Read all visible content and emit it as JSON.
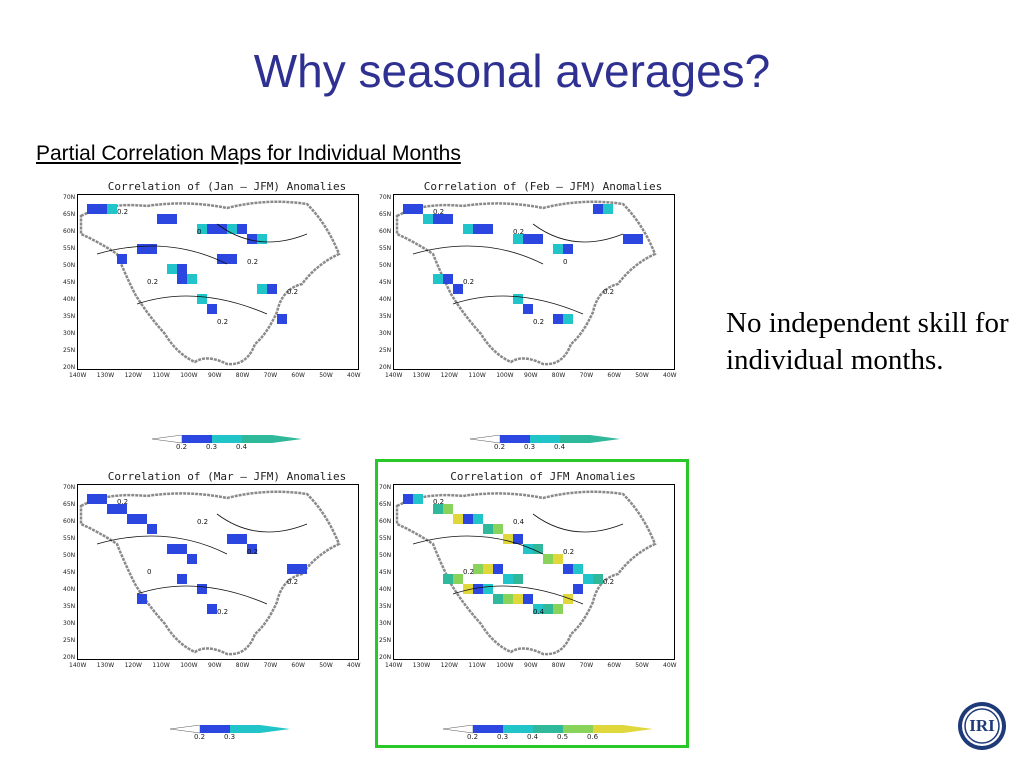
{
  "slide": {
    "title": "Why seasonal averages?",
    "subtitle": "Partial Correlation Maps for Individual Months",
    "side_text": "No independent skill for individual months.",
    "logo_text": "IRI"
  },
  "axes": {
    "lat_labels": [
      "70N",
      "65N",
      "60N",
      "55N",
      "50N",
      "45N",
      "40N",
      "35N",
      "30N",
      "25N",
      "20N"
    ],
    "lon_labels": [
      "140W",
      "130W",
      "120W",
      "110W",
      "100W",
      "90W",
      "80W",
      "70W",
      "60W",
      "50W",
      "40W"
    ]
  },
  "colors": {
    "blue": "#2c46e0",
    "cyan": "#21c4c8",
    "teal": "#2fb89a",
    "green": "#8ad35a",
    "yellow": "#e0d83a",
    "land_outline": "#8a8a8a"
  },
  "panels": [
    {
      "title": "Correlation of (Jan – JFM) Anomalies",
      "contour_labels": [
        "0.2",
        "0",
        "0.2",
        "0.2",
        "0.2",
        "0.2"
      ],
      "colorbar_ticks": [
        "0.2",
        "0.3",
        "0.4"
      ],
      "colorbar_levels": 3
    },
    {
      "title": "Correlation of (Feb – JFM) Anomalies",
      "contour_labels": [
        "0.2",
        "0.2",
        "0.2",
        "0",
        "0.2",
        "0.2"
      ],
      "colorbar_ticks": [
        "0.2",
        "0.3",
        "0.4"
      ],
      "colorbar_levels": 3
    },
    {
      "title": "Correlation of (Mar – JFM) Anomalies",
      "contour_labels": [
        "0.2",
        "0.2",
        "0",
        "0.2",
        "0.2",
        "0.2"
      ],
      "colorbar_ticks": [
        "0.2",
        "0.3"
      ],
      "colorbar_levels": 2
    },
    {
      "title": "Correlation of JFM Anomalies",
      "contour_labels": [
        "0.2",
        "0.4",
        "0.2",
        "0.2",
        "0.4",
        "0.2"
      ],
      "colorbar_ticks": [
        "0.2",
        "0.3",
        "0.4",
        "0.5",
        "0.6"
      ],
      "colorbar_levels": 5
    }
  ]
}
